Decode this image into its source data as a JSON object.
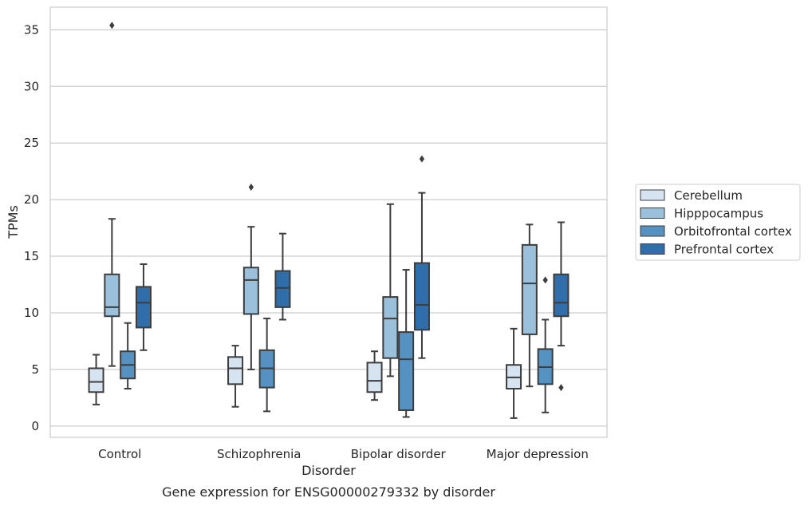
{
  "chart_data": {
    "type": "box",
    "title": "Gene expression for ENSG00000279332 by disorder",
    "xlabel": "Disorder",
    "ylabel": "TPMs",
    "ylim": [
      -1,
      37
    ],
    "yticks": [
      0,
      5,
      10,
      15,
      20,
      25,
      30,
      35
    ],
    "grid": "horizontal",
    "legend_position": "right",
    "categories": [
      "Control",
      "Schizophrenia",
      "Bipolar disorder",
      "Major depression"
    ],
    "series": [
      {
        "name": "Cerebellum",
        "color": "#d6e3f0",
        "boxes": [
          {
            "whisker_low": 1.9,
            "q1": 3.0,
            "median": 3.9,
            "q3": 5.1,
            "whisker_high": 6.3,
            "outliers": []
          },
          {
            "whisker_low": 1.7,
            "q1": 3.7,
            "median": 5.1,
            "q3": 6.1,
            "whisker_high": 7.1,
            "outliers": []
          },
          {
            "whisker_low": 2.3,
            "q1": 3.0,
            "median": 4.0,
            "q3": 5.6,
            "whisker_high": 6.6,
            "outliers": []
          },
          {
            "whisker_low": 0.7,
            "q1": 3.3,
            "median": 4.3,
            "q3": 5.4,
            "whisker_high": 8.6,
            "outliers": []
          }
        ]
      },
      {
        "name": "Hipppocampus",
        "color": "#9ac0dc",
        "boxes": [
          {
            "whisker_low": 5.3,
            "q1": 9.7,
            "median": 10.5,
            "q3": 13.4,
            "whisker_high": 18.3,
            "outliers": [
              35.4
            ]
          },
          {
            "whisker_low": 5.0,
            "q1": 9.9,
            "median": 12.9,
            "q3": 14.0,
            "whisker_high": 17.6,
            "outliers": [
              21.1
            ]
          },
          {
            "whisker_low": 4.4,
            "q1": 6.0,
            "median": 9.5,
            "q3": 11.4,
            "whisker_high": 19.6,
            "outliers": []
          },
          {
            "whisker_low": 3.5,
            "q1": 8.1,
            "median": 12.6,
            "q3": 16.0,
            "whisker_high": 17.8,
            "outliers": []
          }
        ]
      },
      {
        "name": "Orbitofrontal cortex",
        "color": "#5592c2",
        "boxes": [
          {
            "whisker_low": 3.3,
            "q1": 4.2,
            "median": 5.4,
            "q3": 6.6,
            "whisker_high": 9.1,
            "outliers": []
          },
          {
            "whisker_low": 1.3,
            "q1": 3.4,
            "median": 5.1,
            "q3": 6.7,
            "whisker_high": 9.5,
            "outliers": []
          },
          {
            "whisker_low": 0.8,
            "q1": 1.4,
            "median": 5.9,
            "q3": 8.3,
            "whisker_high": 13.8,
            "outliers": []
          },
          {
            "whisker_low": 1.2,
            "q1": 3.7,
            "median": 5.2,
            "q3": 6.8,
            "whisker_high": 9.4,
            "outliers": [
              12.9
            ]
          }
        ]
      },
      {
        "name": "Prefrontal cortex",
        "color": "#2f6eaa",
        "boxes": [
          {
            "whisker_low": 6.7,
            "q1": 8.7,
            "median": 10.9,
            "q3": 12.3,
            "whisker_high": 14.3,
            "outliers": []
          },
          {
            "whisker_low": 9.4,
            "q1": 10.5,
            "median": 12.2,
            "q3": 13.7,
            "whisker_high": 17.0,
            "outliers": []
          },
          {
            "whisker_low": 6.0,
            "q1": 8.5,
            "median": 10.7,
            "q3": 14.4,
            "whisker_high": 20.6,
            "outliers": [
              23.6
            ]
          },
          {
            "whisker_low": 7.1,
            "q1": 9.7,
            "median": 10.9,
            "q3": 13.4,
            "whisker_high": 18.0,
            "outliers": [
              3.4
            ]
          }
        ]
      }
    ]
  }
}
